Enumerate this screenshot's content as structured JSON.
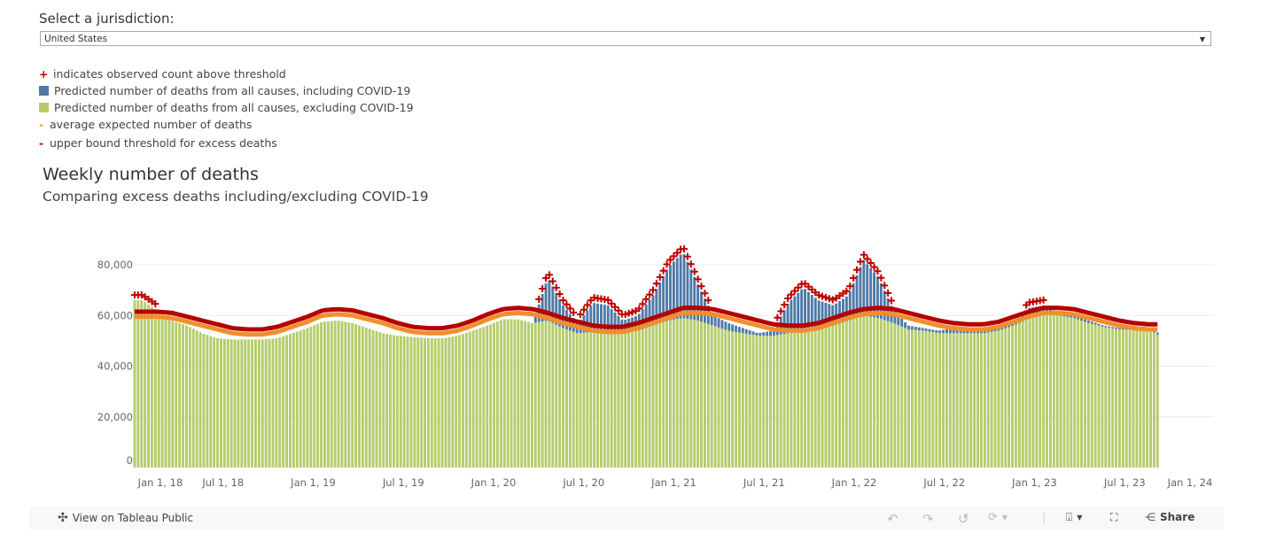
{
  "filter": {
    "label": "Select a jurisdiction:",
    "selected": "United States"
  },
  "legend": [
    {
      "symbol": "+",
      "label": "indicates observed count above threshold",
      "color": "#c00000"
    },
    {
      "symbol": "square",
      "label": "Predicted number of deaths from all causes, including COVID-19",
      "color": "#4e79a7"
    },
    {
      "symbol": "square",
      "label": "Predicted number of deaths from all causes, excluding COVID-19",
      "color": "#b5cc6b"
    },
    {
      "symbol": "-",
      "label": "average expected number of deaths",
      "color": "#f28e2b"
    },
    {
      "symbol": "-",
      "label": "upper bound threshold for excess deaths",
      "color": "#b50000"
    }
  ],
  "chart_data": {
    "type": "bar",
    "title": "Weekly number of deaths",
    "subtitle": "Comparing excess deaths including/excluding COVID-19",
    "xlabel": "",
    "ylabel": "",
    "ylim": [
      0,
      80000
    ],
    "y_ticks": [
      "0",
      "20,000",
      "40,000",
      "60,000",
      "80,000"
    ],
    "y_tick_values": [
      0,
      20000,
      40000,
      60000,
      80000
    ],
    "x_ticks": [
      {
        "label": "Jan 1, 18",
        "year": 2018.0
      },
      {
        "label": "Jul 1, 18",
        "year": 2018.5
      },
      {
        "label": "Jan 1, 19",
        "year": 2019.0
      },
      {
        "label": "Jul 1, 19",
        "year": 2019.5
      },
      {
        "label": "Jan 1, 20",
        "year": 2020.0
      },
      {
        "label": "Jul 1, 20",
        "year": 2020.5
      },
      {
        "label": "Jan 1, 21",
        "year": 2021.0
      },
      {
        "label": "Jul 1, 21",
        "year": 2021.5
      },
      {
        "label": "Jan 1, 22",
        "year": 2022.0
      },
      {
        "label": "Jul 1, 22",
        "year": 2022.5
      },
      {
        "label": "Jan 1, 23",
        "year": 2023.0
      },
      {
        "label": "Jul 1, 23",
        "year": 2023.5
      },
      {
        "label": "Jan 1, 24",
        "year": 2024.0
      }
    ],
    "grid": true,
    "resolution": "monthly values (Jan 2018 - Sep 2023), thousands of deaths per week",
    "series": [
      {
        "name": "Predicted number of deaths from all causes, including COVID-19",
        "color": "#4e79a7",
        "values": [
          66,
          62,
          58,
          56,
          53,
          51,
          50.5,
          50.5,
          50.5,
          51,
          53,
          55,
          57.5,
          58,
          57,
          55,
          53,
          52,
          51.5,
          51,
          51,
          52,
          54,
          56,
          58.5,
          58.5,
          57,
          75,
          64,
          57,
          65,
          64,
          58,
          60,
          68,
          79,
          85,
          72,
          60,
          57,
          55,
          53,
          54,
          65,
          71,
          66,
          64,
          68,
          82,
          75,
          62,
          56,
          55,
          54,
          55,
          55,
          54,
          55,
          57,
          63,
          64,
          61,
          60,
          58,
          56,
          55,
          55,
          55,
          52
        ]
      },
      {
        "name": "Predicted number of deaths from all causes, excluding COVID-19",
        "color": "#b5cc6b",
        "values": [
          66,
          62,
          58,
          56,
          53,
          51,
          50.5,
          50.5,
          50.5,
          51,
          53,
          55,
          57.5,
          58,
          57,
          55,
          53,
          52,
          51.5,
          51,
          51,
          52,
          54,
          56,
          58.5,
          58.5,
          57,
          58,
          55,
          53,
          53.5,
          53,
          53,
          54,
          56,
          58,
          59,
          58,
          56,
          54,
          53,
          52,
          52,
          53,
          54,
          55,
          56,
          58,
          60,
          59,
          57,
          54.5,
          54,
          53,
          53,
          53,
          53,
          54,
          56,
          59,
          61,
          60,
          59,
          57,
          55.5,
          54.5,
          54.5,
          54.5,
          51
        ]
      },
      {
        "name": "average expected number of deaths",
        "color": "#f28e2b",
        "values": [
          59.5,
          59.5,
          59,
          57.5,
          56,
          54.5,
          53,
          52.5,
          52.5,
          53.5,
          55.5,
          57.5,
          60,
          60.5,
          60,
          58.5,
          57,
          55,
          53.5,
          53,
          53,
          54,
          56,
          58.5,
          60.5,
          61,
          60.5,
          59,
          57,
          55.5,
          54,
          53.5,
          53.5,
          55,
          57,
          59,
          61,
          61,
          60.5,
          59,
          57.5,
          56,
          54.5,
          54,
          54,
          55,
          57,
          59,
          60.5,
          61,
          60.5,
          59,
          57.5,
          56,
          55,
          54.5,
          54.5,
          55.5,
          57.5,
          59.5,
          61,
          61,
          60.5,
          59,
          57.5,
          56,
          55,
          54.5,
          54.5
        ]
      },
      {
        "name": "upper bound threshold for excess deaths",
        "color": "#b50000",
        "values": [
          61.5,
          61.5,
          61,
          59.5,
          58,
          56.5,
          55,
          54.5,
          54.5,
          55.5,
          57.5,
          59.5,
          62,
          62.5,
          62,
          60.5,
          59,
          57,
          55.5,
          55,
          55,
          56,
          58,
          60.5,
          62.5,
          63,
          62.5,
          61,
          59,
          57.5,
          56,
          55.5,
          55.5,
          57,
          59,
          61,
          63,
          63,
          62.5,
          61,
          59.5,
          58,
          56.5,
          56,
          56,
          57,
          59,
          61,
          62.5,
          63,
          62.5,
          61,
          59.5,
          58,
          57,
          56.5,
          56.5,
          57.5,
          59.5,
          61.5,
          63,
          63,
          62.5,
          61,
          59.5,
          58,
          57,
          56.5,
          56.5
        ]
      }
    ]
  },
  "toolbar": {
    "view_label": "View on Tableau Public",
    "share_label": "Share"
  }
}
